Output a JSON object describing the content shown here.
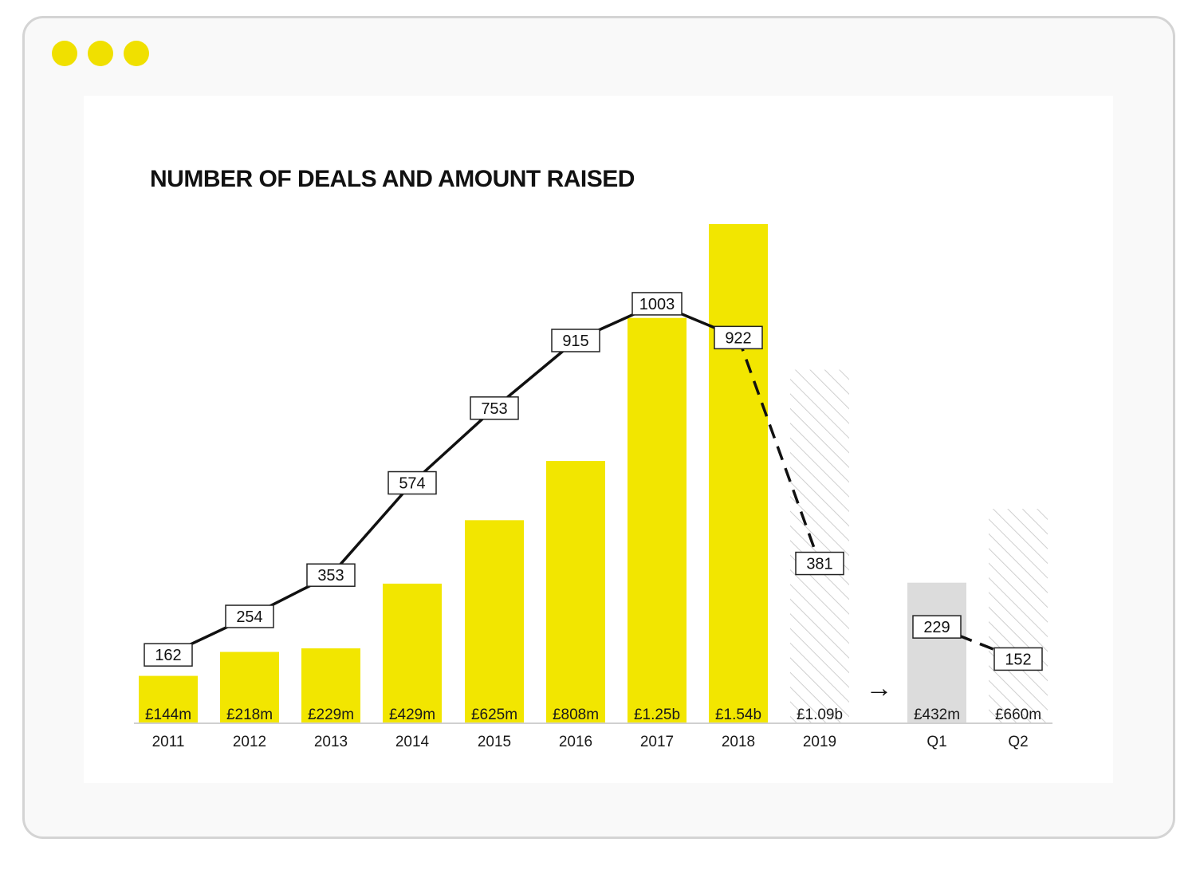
{
  "window": {
    "controls": [
      "dot-1",
      "dot-2",
      "dot-3"
    ]
  },
  "chart_data": {
    "type": "bar",
    "title": "NUMBER OF DEALS AND AMOUNT RAISED",
    "xlabel": "",
    "ylabel": "",
    "categories": [
      "2011",
      "2012",
      "2013",
      "2014",
      "2015",
      "2016",
      "2017",
      "2018",
      "2019",
      "Q1",
      "Q2"
    ],
    "series": [
      {
        "name": "Amount raised",
        "unit": "£m",
        "values": [
          144,
          218,
          229,
          429,
          625,
          808,
          1250,
          1540,
          1090,
          432,
          660
        ],
        "labels": [
          "£144m",
          "£218m",
          "£229m",
          "£429m",
          "£625m",
          "£808m",
          "£1.25b",
          "£1.54b",
          "£1.09b",
          "£432m",
          "£660m"
        ],
        "styles": [
          "actual",
          "actual",
          "actual",
          "actual",
          "actual",
          "actual",
          "actual",
          "actual",
          "projected",
          "quarter",
          "projected"
        ]
      },
      {
        "name": "Number of deals",
        "type": "line",
        "values": [
          162,
          254,
          353,
          574,
          753,
          915,
          1003,
          922,
          381,
          229,
          152
        ],
        "labels": [
          "162",
          "254",
          "353",
          "574",
          "753",
          "915",
          "1003",
          "922",
          "381",
          "229",
          "152"
        ],
        "dashed_segments": [
          [
            7,
            8
          ],
          [
            9,
            10
          ]
        ],
        "breaks_after": [
          8
        ]
      }
    ],
    "annotations": [
      {
        "type": "arrow",
        "text": "→",
        "between": [
          "2019",
          "Q1"
        ]
      }
    ],
    "grid": false,
    "legend": "none",
    "colors": {
      "actual": "#f2e600",
      "quarter": "#dcdcdc",
      "hatch": "#cfcfcf",
      "line": "#111111"
    }
  }
}
